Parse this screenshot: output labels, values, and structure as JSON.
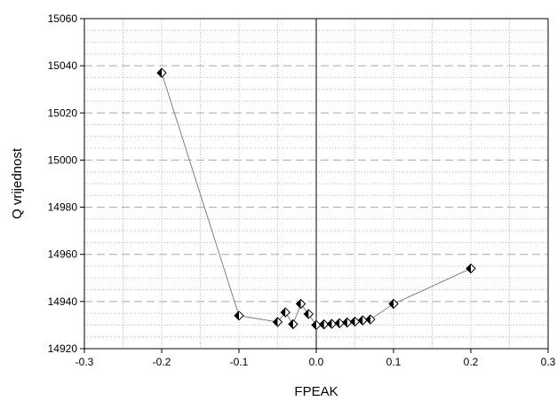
{
  "chart_data": {
    "type": "scatter",
    "xlabel": "FPEAK",
    "ylabel": "Q vrijednost",
    "xlim": [
      -0.3,
      0.3
    ],
    "ylim": [
      14920,
      15060
    ],
    "x_ticks": [
      -0.3,
      -0.2,
      -0.1,
      0.0,
      0.1,
      0.2,
      0.3
    ],
    "x_tick_labels": [
      "-0.3",
      "-0.2",
      "-0.1",
      "0.0",
      "0.1",
      "0.2",
      "0.3"
    ],
    "y_ticks": [
      14920,
      14940,
      14960,
      14980,
      15000,
      15020,
      15040,
      15060
    ],
    "y_tick_labels": [
      "14920",
      "14940",
      "14960",
      "14980",
      "15000",
      "15020",
      "15040",
      "15060"
    ],
    "grid": true,
    "series": [
      {
        "color": "#808080",
        "marker": "half-filled-diamond",
        "points": [
          {
            "x": -0.2,
            "y": 15037
          },
          {
            "x": -0.1,
            "y": 14934
          },
          {
            "x": -0.05,
            "y": 14931.3
          },
          {
            "x": -0.04,
            "y": 14935.4
          },
          {
            "x": -0.03,
            "y": 14930.4
          },
          {
            "x": -0.02,
            "y": 14939
          },
          {
            "x": -0.01,
            "y": 14934.7
          },
          {
            "x": 0.0,
            "y": 14930
          },
          {
            "x": 0.01,
            "y": 14930.3
          },
          {
            "x": 0.02,
            "y": 14930.5
          },
          {
            "x": 0.03,
            "y": 14930.8
          },
          {
            "x": 0.04,
            "y": 14931.1
          },
          {
            "x": 0.05,
            "y": 14931.5
          },
          {
            "x": 0.06,
            "y": 14932
          },
          {
            "x": 0.07,
            "y": 14932.4
          },
          {
            "x": 0.1,
            "y": 14939
          },
          {
            "x": 0.2,
            "y": 14954
          }
        ]
      }
    ]
  }
}
